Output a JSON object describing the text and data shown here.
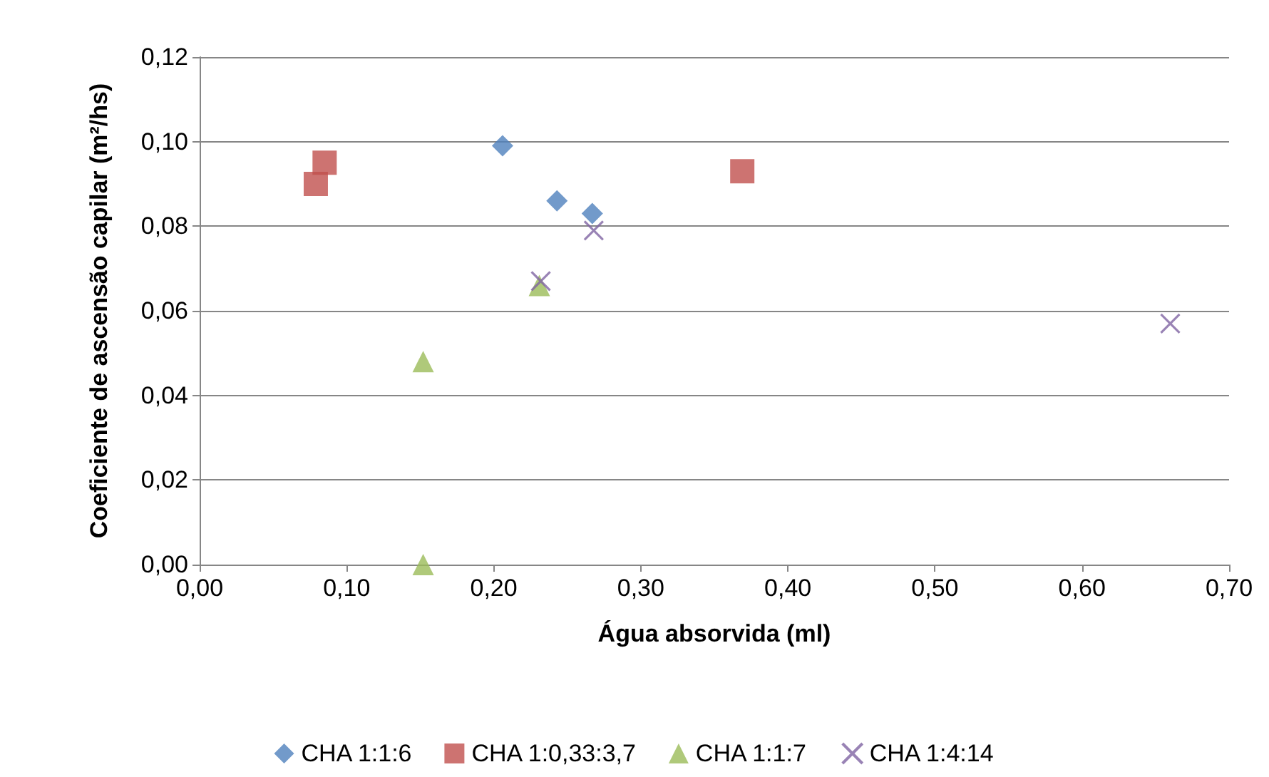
{
  "chart_data": {
    "type": "scatter",
    "xlabel": "Água absorvida (ml)",
    "ylabel": "Coeficiente de ascensão capilar (m²/hs)",
    "xlim": [
      0,
      0.7
    ],
    "xticks": [
      {
        "value": 0,
        "label": "0,00"
      },
      {
        "value": 0.1,
        "label": "0,10"
      },
      {
        "value": 0.2,
        "label": "0,20"
      },
      {
        "value": 0.3,
        "label": "0,30"
      },
      {
        "value": 0.4,
        "label": "0,40"
      },
      {
        "value": 0.5,
        "label": "0,50"
      },
      {
        "value": 0.6,
        "label": "0,60"
      },
      {
        "value": 0.7,
        "label": "0,70"
      }
    ],
    "ylim": [
      0,
      0.12
    ],
    "yticks": [
      {
        "value": 0,
        "label": "0,00"
      },
      {
        "value": 0.02,
        "label": "0,02"
      },
      {
        "value": 0.04,
        "label": "0,04"
      },
      {
        "value": 0.06,
        "label": "0,06"
      },
      {
        "value": 0.08,
        "label": "0,08"
      },
      {
        "value": 0.1,
        "label": "0,10"
      },
      {
        "value": 0.12,
        "label": "0,12"
      }
    ],
    "grid": "y",
    "legend": "bottom",
    "series": [
      {
        "name": "CHA 1:1:6",
        "color": "#4f81bd",
        "marker": "diamond",
        "x": [
          0.206,
          0.243,
          0.267
        ],
        "values": [
          0.099,
          0.086,
          0.083
        ]
      },
      {
        "name": "CHA 1:0,33:3,7",
        "color": "#c0504d",
        "marker": "square",
        "x": [
          0.079,
          0.085,
          0.369
        ],
        "values": [
          0.09,
          0.095,
          0.093
        ]
      },
      {
        "name": "CHA 1:1:7",
        "color": "#9bbb59",
        "marker": "triangle",
        "x": [
          0.152,
          0.152,
          0.231
        ],
        "values": [
          0.0,
          0.048,
          0.066
        ]
      },
      {
        "name": "CHA 1:4:14",
        "color": "#8064a2",
        "marker": "cross",
        "x": [
          0.232,
          0.268,
          0.66
        ],
        "values": [
          0.067,
          0.079,
          0.057
        ]
      }
    ]
  }
}
